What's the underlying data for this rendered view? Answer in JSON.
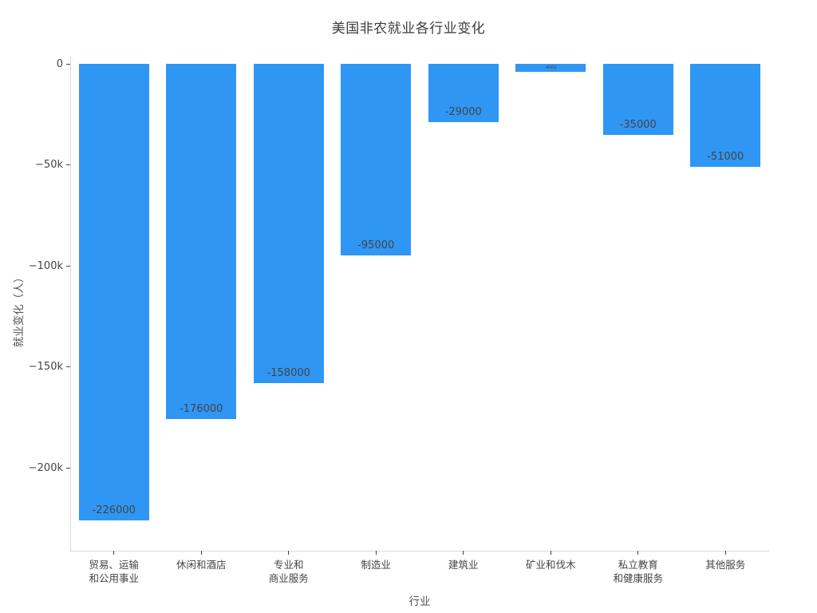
{
  "title": "美国非农就业各行业变化",
  "chart_data": {
    "type": "bar",
    "title": "美国非农就业各行业变化",
    "xlabel": "行业",
    "ylabel": "就业变化（人）",
    "bar_color": "#2f96f4",
    "bar_label_color": "#444444",
    "categories": [
      "贸易、运输\n和公用事业",
      "休闲和酒店",
      "专业和\n商业服务",
      "制造业",
      "建筑业",
      "矿业和伐木",
      "私立教育\n和健康服务",
      "其他服务"
    ],
    "values": [
      -226000,
      -176000,
      -158000,
      -95000,
      -29000,
      -4000,
      -35000,
      -51000
    ],
    "bar_labels": [
      "-226000",
      "-176000",
      "-158000",
      "-95000",
      "-29000",
      "-4000",
      "-35000",
      "-51000"
    ],
    "yticks": [
      {
        "value": 0,
        "label": "0"
      },
      {
        "value": -50000,
        "label": "−50k"
      },
      {
        "value": -100000,
        "label": "−100k"
      },
      {
        "value": -150000,
        "label": "−150k"
      },
      {
        "value": -200000,
        "label": "−200k"
      }
    ],
    "ylim": [
      -241000,
      4000
    ],
    "grid": false,
    "legend": "none",
    "background": "#ffffff"
  }
}
